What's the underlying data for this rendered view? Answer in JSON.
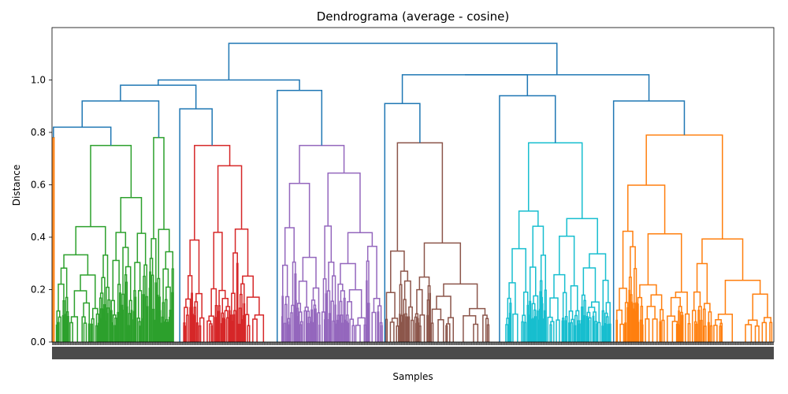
{
  "chart_data": {
    "type": "dendrogram",
    "title": "Dendrograma (average - cosine)",
    "xlabel": "Samples",
    "ylabel": "Distance",
    "ylim": [
      0,
      1.2
    ],
    "yticks": [
      0.0,
      0.2,
      0.4,
      0.6,
      0.8,
      1.0
    ],
    "ytick_labels": [
      "0.0",
      "0.2",
      "0.4",
      "0.6",
      "0.8",
      "1.0"
    ],
    "grid": false,
    "n_leaves": 1400,
    "above_threshold_color": "#1f77b4",
    "clusters": [
      {
        "color": "#ff7f0e",
        "span": [
          0.0,
          0.004
        ],
        "height": 0.78,
        "link": 0.8
      },
      {
        "color": "#2ca02c",
        "span": [
          0.005,
          0.133
        ],
        "height": 0.75,
        "link": 0.81
      },
      {
        "color": "#2ca02c",
        "span": [
          0.134,
          0.169
        ],
        "height": 0.78,
        "link": 0.81
      },
      {
        "color": "#d62728",
        "span": [
          0.182,
          0.3
        ],
        "height": 0.75,
        "link": 0.88
      },
      {
        "color": "#9467bd",
        "span": [
          0.318,
          0.458
        ],
        "height": 0.75,
        "link": 0.83
      },
      {
        "color": "#8c564b",
        "span": [
          0.462,
          0.606
        ],
        "height": 0.76,
        "link": 0.9
      },
      {
        "color": "#17becf",
        "span": [
          0.627,
          0.775
        ],
        "height": 0.76,
        "link": 0.85
      },
      {
        "color": "#ff7f0e",
        "span": [
          0.781,
          0.998
        ],
        "height": 0.79,
        "link": 0.89
      }
    ],
    "top_merges": [
      {
        "height": 1.14,
        "children": [
          "left",
          "right"
        ]
      },
      {
        "height": 0.98,
        "children": [
          "left-a",
          "left-b"
        ]
      },
      {
        "height": 1.02,
        "children": [
          "right-a",
          "right-b"
        ]
      }
    ]
  }
}
